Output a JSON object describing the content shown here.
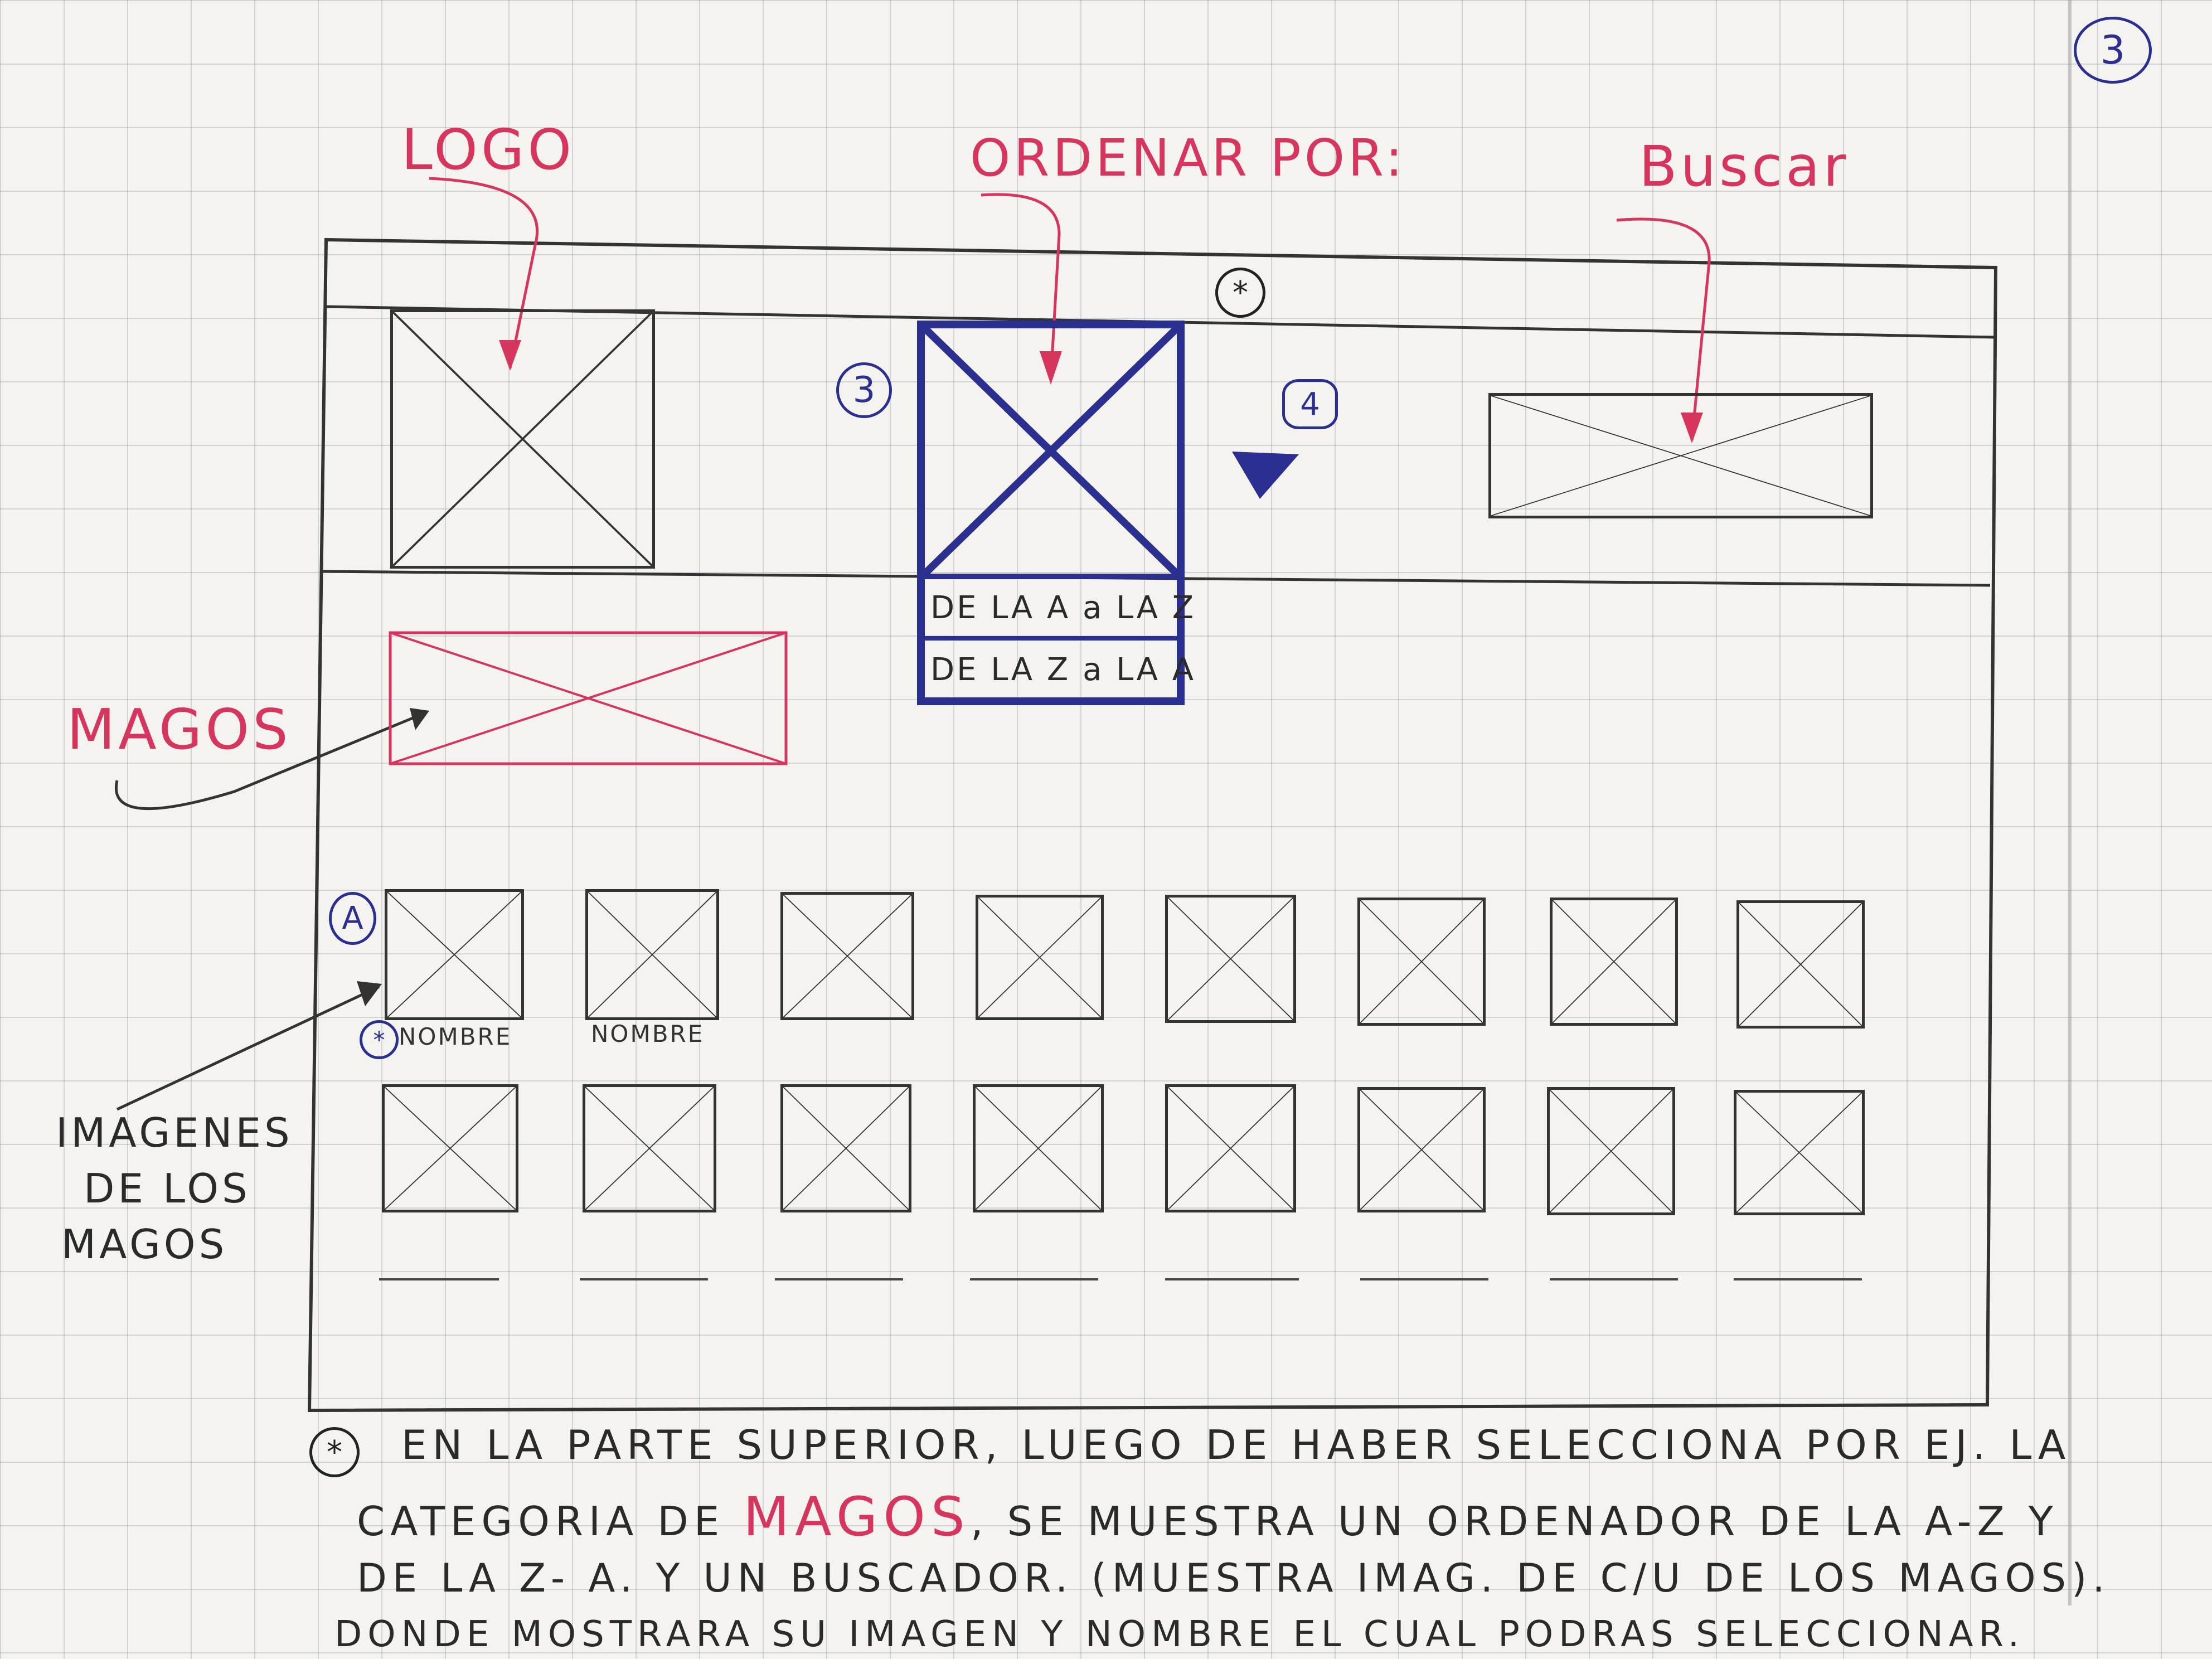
{
  "page_number": "3",
  "annotations": {
    "logo": "LOGO",
    "ordenar": "ORDENAR POR:",
    "buscar": "Buscar",
    "magos": "MAGOS",
    "imagenes": [
      "IMAGENES",
      "DE LOS",
      "MAGOS"
    ]
  },
  "markers": {
    "m3": "3",
    "m4": "4",
    "mA": "A",
    "star": "*"
  },
  "sort_options": [
    "DE LA A a LA Z",
    "DE LA Z a LA A"
  ],
  "wizard_names": [
    "NOMBRE",
    "NOMBRE"
  ],
  "note": {
    "star": "*",
    "line1": "EN LA PARTE SUPERIOR, LUEGO DE HABER SELECCIONA POR EJ. LA",
    "line2_a": "CATEGORIA DE ",
    "line2_highlight": "MAGOS",
    "line2_b": ", SE MUESTRA UN ORDENADOR DE LA A-Z Y",
    "line3": "DE LA Z- A. Y UN BUSCADOR. (MUESTRA IMAG. DE C/U DE LOS MAGOS).",
    "line4": "DONDE MOSTRARA SU IMAGEN Y NOMBRE EL CUAL PODRAS SELECCIONAR."
  },
  "colors": {
    "ink": "#2a2a2a",
    "pink": "#d6365e",
    "blue": "#2b2f8f"
  }
}
